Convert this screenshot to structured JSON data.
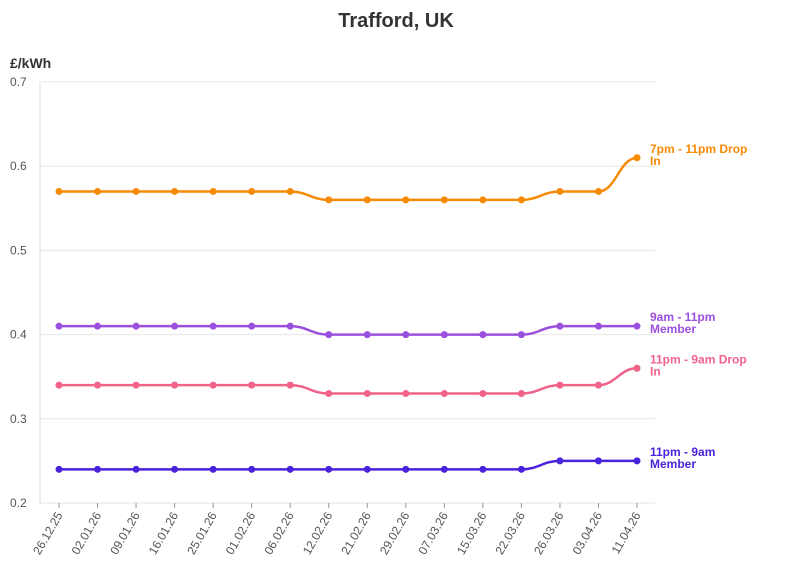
{
  "chart_data": {
    "type": "line",
    "title": "Trafford, UK",
    "ylabel": "£/kWh",
    "xlabel": "",
    "ylim": [
      0.2,
      0.7
    ],
    "yticks": [
      "0.2",
      "0.3",
      "0.4",
      "0.5",
      "0.6",
      "0.7"
    ],
    "grid": true,
    "legend": "end-of-line labels",
    "x": [
      "26.12.25",
      "02.01.26",
      "09.01.26",
      "16.01.26",
      "25.01.26",
      "01.02.26",
      "06.02.26",
      "12.02.26",
      "21.02.26",
      "29.02.26",
      "07.03.26",
      "15.03.26",
      "22.03.26",
      "26.03.26",
      "03.04.26",
      "11.04.26"
    ],
    "series": [
      {
        "name": "7pm - 11pm Drop In",
        "label_lines": [
          "7pm - 11pm Drop",
          "In"
        ],
        "color": "#f78a05",
        "values": [
          0.57,
          0.57,
          0.57,
          0.57,
          0.57,
          0.57,
          0.57,
          0.56,
          0.56,
          0.56,
          0.56,
          0.56,
          0.56,
          0.57,
          0.57,
          0.61
        ]
      },
      {
        "name": "9am - 11pm Member",
        "label_lines": [
          "9am - 11pm",
          "Member"
        ],
        "color": "#9a50dc",
        "values": [
          0.41,
          0.41,
          0.41,
          0.41,
          0.41,
          0.41,
          0.41,
          0.4,
          0.4,
          0.4,
          0.4,
          0.4,
          0.4,
          0.41,
          0.41,
          0.41
        ]
      },
      {
        "name": "11pm - 9am Drop In",
        "label_lines": [
          "11pm - 9am Drop",
          "In"
        ],
        "color": "#f0628a",
        "values": [
          0.34,
          0.34,
          0.34,
          0.34,
          0.34,
          0.34,
          0.34,
          0.33,
          0.33,
          0.33,
          0.33,
          0.33,
          0.33,
          0.34,
          0.34,
          0.36
        ]
      },
      {
        "name": "11pm - 9am Member",
        "label_lines": [
          "11pm - 9am",
          "Member"
        ],
        "color": "#4a22dc",
        "values": [
          0.24,
          0.24,
          0.24,
          0.24,
          0.24,
          0.24,
          0.24,
          0.24,
          0.24,
          0.24,
          0.24,
          0.24,
          0.24,
          0.25,
          0.25,
          0.25
        ]
      }
    ]
  }
}
